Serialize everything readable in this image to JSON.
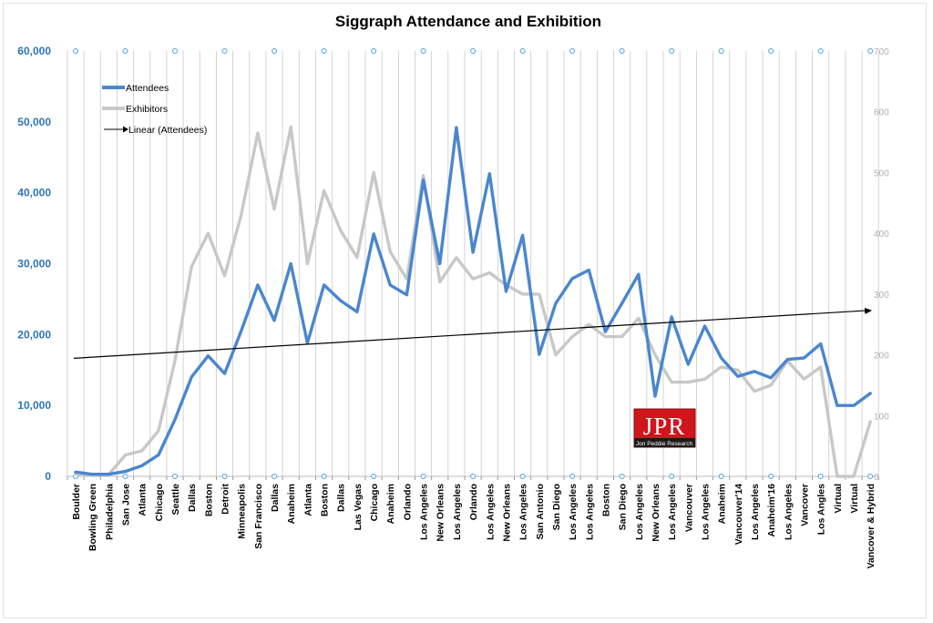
{
  "chart_data": {
    "type": "line",
    "title": "Siggraph Attendance and Exhibition",
    "categories": [
      "Boulder",
      "Bowling Green",
      "Philadelphia",
      "San Jose",
      "Atlanta",
      "Chicago",
      "Seattle",
      "Dallas",
      "Boston",
      "Detroit",
      "Minneapolis",
      "San Francisco",
      "Dallas",
      "Anaheim",
      "Atlanta",
      "Boston",
      "Dallas",
      "Las Vegas",
      "Chicago",
      "Anaheim",
      "Orlando",
      "Los Angeles",
      "New Orleans",
      "Los Angeles",
      "Orlando",
      "Los Angeles",
      "New Orleans",
      "Los Angeles",
      "San Antonio",
      "San Diego",
      "Los Angeles",
      "Los Angeles",
      "Boston",
      "San Diego",
      "Los Angeles",
      "New Orleans",
      "Los Angeles",
      "Vancouver",
      "Los Angeles",
      "Anaheim",
      "Vancouver'14",
      "Los Angeles",
      "Anaheim'16",
      "Los Angeles",
      "Vancover",
      "Los Angles",
      "Virtual",
      "Virtual",
      "Vancover & Hybrid"
    ],
    "y_left": {
      "ticks": [
        "0",
        "10,000",
        "20,000",
        "30,000",
        "40,000",
        "50,000",
        "60,000"
      ],
      "ylim": [
        0,
        60000
      ]
    },
    "y_right": {
      "ticks": [
        "0",
        "100",
        "200",
        "300",
        "400",
        "500",
        "600",
        "700"
      ],
      "ylim": [
        0,
        700
      ]
    },
    "series": [
      {
        "name": "Attendees",
        "axis": "left",
        "color": "#4a86cf",
        "values": [
          600,
          300,
          300,
          700,
          1500,
          3000,
          8000,
          14000,
          17000,
          14500,
          20500,
          27000,
          22000,
          30000,
          18800,
          27000,
          24800,
          23200,
          34200,
          27000,
          25600,
          41800,
          30000,
          49200,
          31600,
          42700,
          26100,
          34000,
          17200,
          24400,
          27900,
          29100,
          20400,
          24400,
          28500,
          11300,
          22500,
          15800,
          21200,
          16700,
          14100,
          14800,
          13900,
          16500,
          16700,
          18700,
          10000,
          10000,
          11700
        ]
      },
      {
        "name": "Exhibitors",
        "axis": "right",
        "color": "#c8c8c8",
        "values": [
          4,
          3,
          3,
          35,
          42,
          75,
          190,
          345,
          400,
          330,
          430,
          565,
          440,
          575,
          350,
          470,
          405,
          360,
          500,
          370,
          325,
          495,
          320,
          360,
          325,
          335,
          315,
          300,
          300,
          200,
          230,
          250,
          230,
          230,
          260,
          200,
          155,
          155,
          160,
          180,
          175,
          140,
          150,
          190,
          160,
          180,
          0,
          0,
          90
        ]
      }
    ],
    "trendline": {
      "name": "Linear (Attendees)",
      "color": "#000000"
    },
    "legend": {
      "position": "top-left",
      "entries": [
        "Attendees",
        "Exhibitors",
        "Linear (Attendees)"
      ]
    },
    "grid": {
      "vertical": true,
      "horizontal": false
    },
    "logo": {
      "text": "JPR",
      "subtext": "Jon Peddie Research",
      "color": "#d0161b"
    }
  }
}
